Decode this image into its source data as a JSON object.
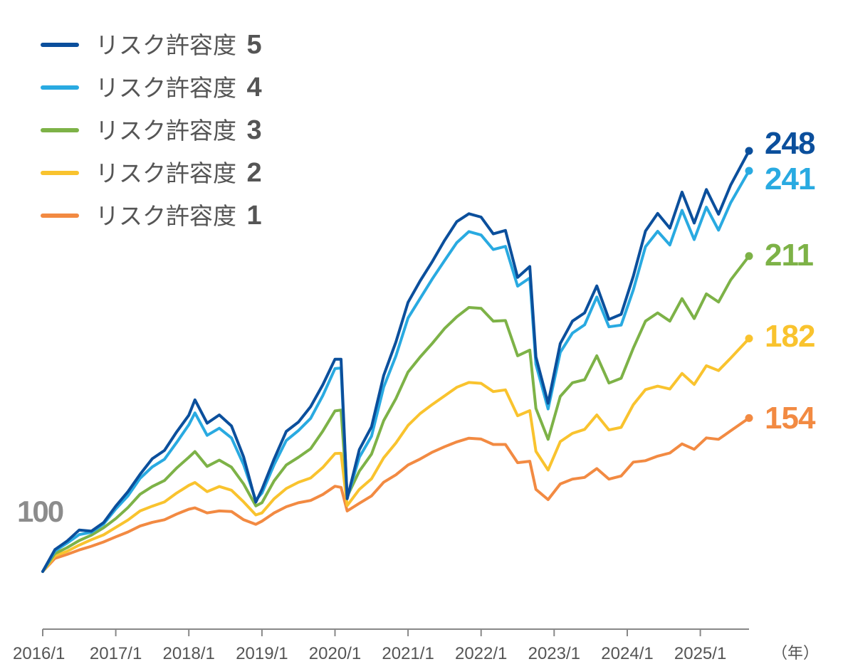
{
  "chart_data": {
    "type": "line",
    "title": "",
    "xlabel": "",
    "ylabel": "",
    "x_unit_label": "（年）",
    "start_value": 100,
    "start_value_label": "100",
    "x_ticks": [
      "2016/1",
      "2017/1",
      "2018/1",
      "2019/1",
      "2020/1",
      "2021/1",
      "2022/1",
      "2023/1",
      "2024/1",
      "2025/1"
    ],
    "x_range": [
      "2016-01",
      "2025-09"
    ],
    "ylim": [
      85,
      262
    ],
    "grid": false,
    "legend_placement": "top-left",
    "x": [
      "2016-01",
      "2016-03",
      "2016-05",
      "2016-07",
      "2016-09",
      "2016-11",
      "2017-01",
      "2017-03",
      "2017-05",
      "2017-07",
      "2017-09",
      "2017-11",
      "2018-01",
      "2018-02",
      "2018-04",
      "2018-06",
      "2018-08",
      "2018-10",
      "2018-12",
      "2019-01",
      "2019-03",
      "2019-05",
      "2019-07",
      "2019-09",
      "2019-11",
      "2020-01",
      "2020-02",
      "2020-03",
      "2020-05",
      "2020-07",
      "2020-09",
      "2020-11",
      "2021-01",
      "2021-03",
      "2021-05",
      "2021-07",
      "2021-09",
      "2021-11",
      "2022-01",
      "2022-03",
      "2022-05",
      "2022-07",
      "2022-09",
      "2022-10",
      "2022-12",
      "2023-02",
      "2023-04",
      "2023-06",
      "2023-08",
      "2023-10",
      "2023-12",
      "2024-02",
      "2024-04",
      "2024-06",
      "2024-08",
      "2024-10",
      "2024-12",
      "2025-02",
      "2025-04",
      "2025-06",
      "2025-09"
    ],
    "series": [
      {
        "name": "リスク許容度 5",
        "color": "#0b4f9c",
        "end_label": "248",
        "values": [
          100,
          107.7,
          110.7,
          114.6,
          114.2,
          117.2,
          123,
          128.1,
          134.2,
          139.7,
          142.6,
          149.1,
          155,
          160.4,
          152.2,
          155.1,
          151.2,
          140.3,
          124.4,
          128.9,
          139.6,
          149.3,
          152.6,
          158,
          165.7,
          174.7,
          174.7,
          125.6,
          142.9,
          150.9,
          169,
          180.7,
          194.7,
          202.3,
          209.1,
          216.5,
          223.1,
          225.9,
          224.7,
          218.8,
          220,
          203.5,
          207.3,
          175.5,
          159.2,
          180.2,
          188.1,
          191,
          200.5,
          188.7,
          190.5,
          203.9,
          219.8,
          226,
          220.8,
          233.5,
          222.6,
          234.4,
          225.7,
          236,
          248
        ]
      },
      {
        "name": "リスク許容度 4",
        "color": "#29aae1",
        "end_label": "241",
        "values": [
          100,
          107.2,
          110,
          113,
          113.8,
          116.7,
          122,
          126.6,
          132.8,
          136.8,
          139.5,
          145.4,
          151.6,
          155.8,
          147.9,
          150.4,
          147,
          137.6,
          125.1,
          127.6,
          137.6,
          146.1,
          149.6,
          153.9,
          161.9,
          171.4,
          171.6,
          125.8,
          140.2,
          147.6,
          164.9,
          175.8,
          189.2,
          196.1,
          203,
          209.4,
          215.7,
          219.6,
          218.4,
          213.3,
          214.4,
          200.4,
          203.3,
          172.9,
          157.2,
          177.1,
          183.9,
          186.8,
          196.6,
          186.1,
          186.7,
          199.1,
          214.3,
          219.7,
          214.9,
          227.1,
          216.8,
          228.2,
          220.1,
          229.8,
          241
        ]
      },
      {
        "name": "リスク許容度 3",
        "color": "#7db247",
        "end_label": "211",
        "values": [
          100,
          106.3,
          108.4,
          110.9,
          112.8,
          115.4,
          118.6,
          122.5,
          127.2,
          129.9,
          132,
          136.4,
          140.2,
          142.2,
          137,
          139.2,
          136.7,
          130.8,
          123.1,
          124.2,
          131.9,
          137.5,
          140.2,
          143.2,
          149.4,
          156.5,
          156.8,
          126.4,
          135.3,
          141.3,
          153.1,
          160.8,
          170.2,
          175.5,
          180.3,
          185.5,
          189.6,
          192.9,
          192.6,
          188.1,
          188.3,
          175.9,
          177.9,
          157.4,
          146.5,
          161.6,
          166.4,
          167.5,
          175.9,
          166.3,
          168,
          178.6,
          188.1,
          191,
          188.1,
          196,
          189,
          197.7,
          194.8,
          202.6,
          211
        ]
      },
      {
        "name": "リスク許容度 2",
        "color": "#f9c32e",
        "end_label": "182",
        "values": [
          100,
          105.5,
          107.1,
          109.3,
          111.2,
          112.9,
          115.5,
          118.1,
          121.3,
          123,
          124.5,
          127.6,
          130.3,
          131.3,
          128.1,
          129.9,
          128.6,
          124.5,
          119.9,
          120.6,
          125.6,
          129.2,
          131.4,
          132.9,
          136.6,
          141.5,
          141.6,
          123.2,
          128.9,
          132.6,
          140,
          145.2,
          151.4,
          155.6,
          158.8,
          161.8,
          164.8,
          166.5,
          166.2,
          163.3,
          163.9,
          154.8,
          156.6,
          142.3,
          135.7,
          145.7,
          148.6,
          150,
          155.1,
          149.8,
          150.7,
          158.7,
          164,
          165.2,
          164.2,
          169.7,
          165.8,
          172.4,
          170.7,
          175.1,
          182
        ]
      },
      {
        "name": "リスク許容度 1",
        "color": "#f28a42",
        "end_label": "154",
        "values": [
          100,
          104.6,
          106,
          107.6,
          108.9,
          110.4,
          112.2,
          113.9,
          116,
          117.3,
          118.2,
          120.2,
          121.9,
          122.4,
          120.6,
          121.3,
          121.1,
          118.2,
          116.6,
          117.7,
          120.6,
          122.8,
          124.2,
          125,
          127.1,
          130,
          129.6,
          121.3,
          124,
          126.6,
          131.4,
          134,
          137.5,
          139.6,
          142,
          143.9,
          145.6,
          146.9,
          146.6,
          144.7,
          144.7,
          138.3,
          138.8,
          128.9,
          125.3,
          130.8,
          132.5,
          133.1,
          136.2,
          132.5,
          133.6,
          138.5,
          139,
          140.6,
          141.7,
          144.9,
          143,
          147,
          146.5,
          149.5,
          154
        ]
      }
    ]
  }
}
